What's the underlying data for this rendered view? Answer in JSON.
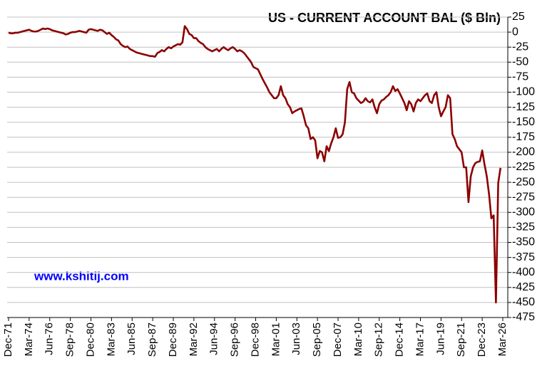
{
  "chart_data": {
    "type": "line",
    "title": "US - CURRENT ACCOUNT BAL ($ Bln)",
    "annotation": "www.kshitij.com",
    "color": "#8b0000",
    "grid": true,
    "ylim": [
      -475,
      25
    ],
    "yticks": [
      25,
      0,
      -25,
      -50,
      -75,
      -100,
      -125,
      -150,
      -175,
      -200,
      -225,
      -250,
      -275,
      -300,
      -325,
      -350,
      -375,
      -400,
      -425,
      -450,
      -475
    ],
    "categories": [
      "Dec-71",
      null,
      null,
      null,
      null,
      null,
      null,
      null,
      null,
      "Mar-74",
      null,
      null,
      null,
      null,
      null,
      null,
      null,
      null,
      "Jun-76",
      null,
      null,
      null,
      null,
      null,
      null,
      null,
      null,
      "Sep-78",
      null,
      null,
      null,
      null,
      null,
      null,
      null,
      null,
      "Dec-80",
      null,
      null,
      null,
      null,
      null,
      null,
      null,
      null,
      "Mar-83",
      null,
      null,
      null,
      null,
      null,
      null,
      null,
      null,
      "Jun-85",
      null,
      null,
      null,
      null,
      null,
      null,
      null,
      null,
      "Sep-87",
      null,
      null,
      null,
      null,
      null,
      null,
      null,
      null,
      "Dec-89",
      null,
      null,
      null,
      null,
      null,
      null,
      null,
      null,
      "Mar-92",
      null,
      null,
      null,
      null,
      null,
      null,
      null,
      null,
      "Jun-94",
      null,
      null,
      null,
      null,
      null,
      null,
      null,
      null,
      "Sep-96",
      null,
      null,
      null,
      null,
      null,
      null,
      null,
      null,
      "Dec-98",
      null,
      null,
      null,
      null,
      null,
      null,
      null,
      null,
      "Mar-01",
      null,
      null,
      null,
      null,
      null,
      null,
      null,
      null,
      "Jun-03",
      null,
      null,
      null,
      null,
      null,
      null,
      null,
      null,
      "Sep-05",
      null,
      null,
      null,
      null,
      null,
      null,
      null,
      null,
      "Dec-07",
      null,
      null,
      null,
      null,
      null,
      null,
      null,
      null,
      "Mar-10",
      null,
      null,
      null,
      null,
      null,
      null,
      null,
      null,
      "Sep-12",
      null,
      null,
      null,
      null,
      null,
      null,
      null,
      null,
      "Dec-14",
      null,
      null,
      null,
      null,
      null,
      null,
      null,
      null,
      "Mar-17",
      null,
      null,
      null,
      null,
      null,
      null,
      null,
      null,
      "Jun-19",
      null,
      null,
      null,
      null,
      null,
      null,
      null,
      null,
      "Sep-21",
      null,
      null,
      null,
      null,
      null,
      null,
      null,
      null,
      "Dec-23",
      null,
      null,
      null,
      null,
      null,
      null,
      null,
      null,
      "Mar-26"
    ],
    "values": [
      -1,
      -2,
      -2,
      -1,
      -1,
      0,
      1,
      2,
      3,
      4,
      2,
      1,
      1,
      2,
      4,
      6,
      5,
      6,
      5,
      3,
      2,
      1,
      0,
      -1,
      -2,
      -4,
      -3,
      -1,
      0,
      0,
      1,
      2,
      1,
      0,
      -1,
      4,
      5,
      4,
      3,
      2,
      4,
      3,
      0,
      -3,
      -1,
      -5,
      -8,
      -12,
      -14,
      -20,
      -23,
      -25,
      -24,
      -28,
      -30,
      -32,
      -34,
      -35,
      -36,
      -37,
      -38,
      -39,
      -40,
      -40,
      -41,
      -35,
      -33,
      -30,
      -32,
      -28,
      -25,
      -27,
      -24,
      -22,
      -20,
      -21,
      -17,
      10,
      5,
      -3,
      -5,
      -10,
      -10,
      -15,
      -18,
      -20,
      -25,
      -28,
      -30,
      -32,
      -30,
      -28,
      -32,
      -28,
      -25,
      -28,
      -30,
      -27,
      -25,
      -28,
      -32,
      -30,
      -32,
      -35,
      -40,
      -45,
      -50,
      -58,
      -60,
      -62,
      -70,
      -78,
      -85,
      -92,
      -100,
      -105,
      -110,
      -110,
      -105,
      -90,
      -105,
      -110,
      -120,
      -125,
      -135,
      -132,
      -130,
      -128,
      -127,
      -140,
      -155,
      -160,
      -178,
      -175,
      -180,
      -210,
      -198,
      -200,
      -215,
      -190,
      -198,
      -185,
      -175,
      -160,
      -176,
      -175,
      -170,
      -150,
      -95,
      -83,
      -100,
      -102,
      -110,
      -114,
      -118,
      -116,
      -110,
      -115,
      -117,
      -112,
      -125,
      -135,
      -120,
      -114,
      -112,
      -108,
      -105,
      -100,
      -90,
      -98,
      -95,
      -102,
      -110,
      -118,
      -130,
      -115,
      -120,
      -132,
      -118,
      -112,
      -115,
      -110,
      -105,
      -102,
      -115,
      -118,
      -105,
      -100,
      -125,
      -140,
      -132,
      -125,
      -105,
      -110,
      -170,
      -178,
      -190,
      -195,
      -200,
      -225,
      -225,
      -283,
      -240,
      -225,
      -218,
      -216,
      -215,
      -197,
      -220,
      -240,
      -270,
      -310,
      -305,
      -450,
      -251,
      -226,
      null
    ]
  }
}
